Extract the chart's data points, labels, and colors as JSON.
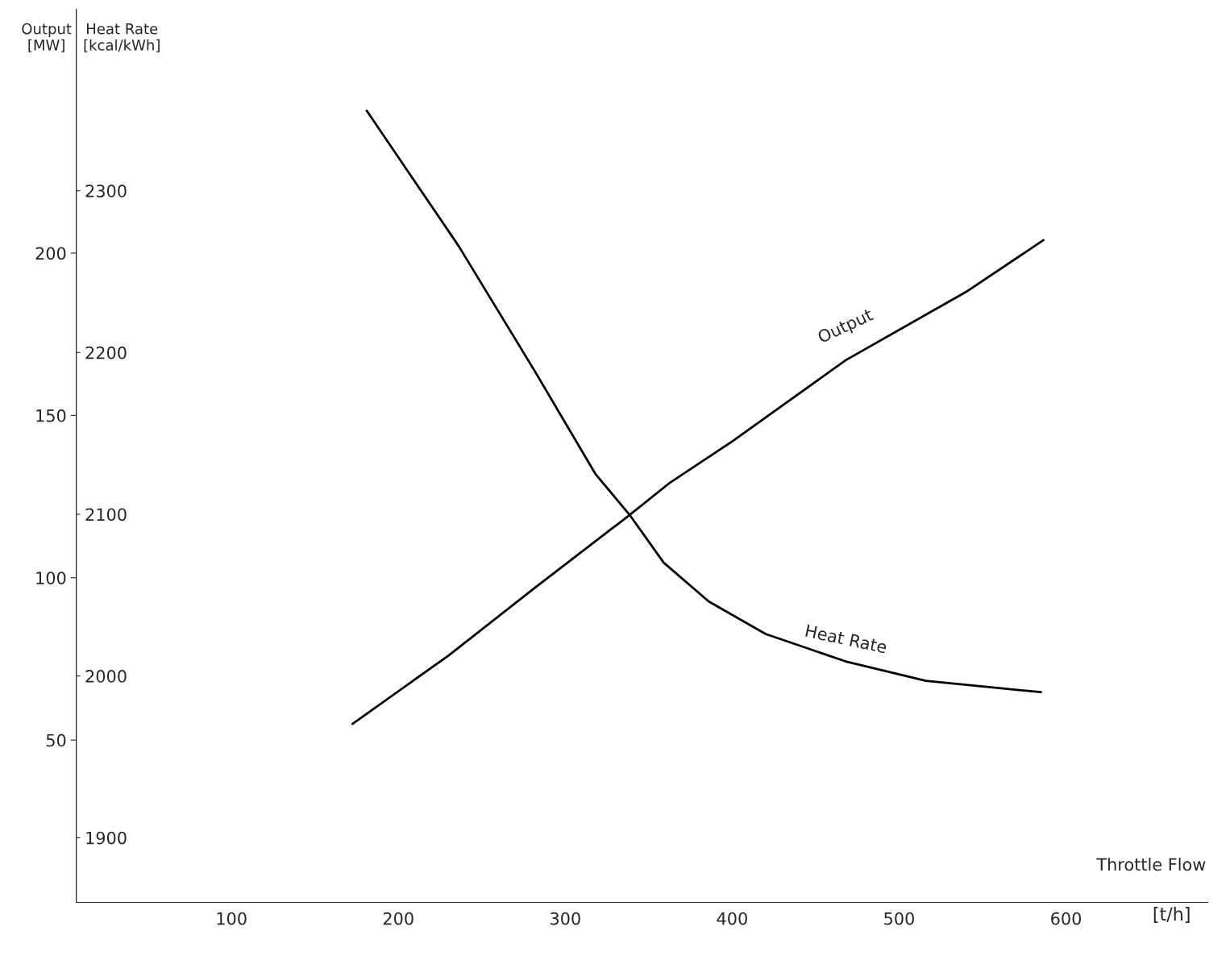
{
  "chart_data": {
    "type": "line",
    "xlabel": "Throttle Flow",
    "ylabel": "Output\n[MW]",
    "y2label": "Heat Rate\n[kcal/kWh]",
    "annotations": [
      "[t/h]"
    ],
    "xlim": [
      7,
      685
    ],
    "xticks": [
      100,
      200,
      300,
      400,
      500,
      600
    ],
    "ylim": [
      0,
      275
    ],
    "yticks": [
      50,
      100,
      150,
      200
    ],
    "y2lim": [
      1860,
      2412
    ],
    "y2ticks": [
      1900,
      2000,
      2100,
      2200,
      2300
    ],
    "grid": false,
    "legend": false,
    "marker": "none",
    "line_style": "solid",
    "series": [
      {
        "name": "Output",
        "color": "#000000",
        "x": [
          172.5,
          230,
          282,
          339,
          362,
          400,
          468,
          540,
          586.5
        ],
        "values": [
          55,
          76,
          97,
          119.5,
          129,
          142,
          167,
          188,
          204
        ]
      },
      {
        "name": "Heat Rate",
        "color": "#000000",
        "axis": "y2",
        "x": [
          181,
          236,
          282,
          318,
          339,
          359,
          386,
          420,
          468,
          516,
          585
        ],
        "values": [
          2349.5,
          2266,
          2188,
          2125,
          2099,
          2070,
          2046,
          2026,
          2009,
          1997,
          1990
        ]
      }
    ]
  }
}
